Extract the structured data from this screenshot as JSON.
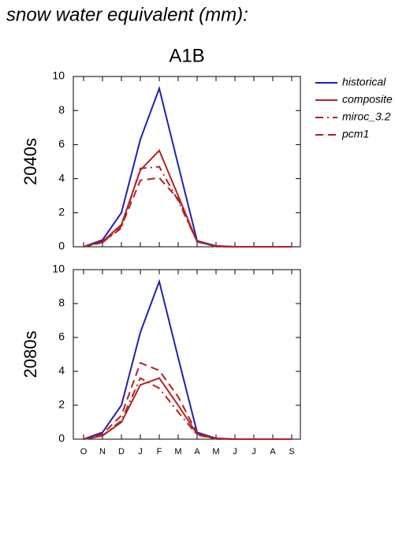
{
  "title": "snow water equivalent (mm):",
  "subtitle": "A1B",
  "legend": [
    {
      "name": "historical",
      "color": "#1f1fb4",
      "dash": "solid"
    },
    {
      "name": "composite",
      "color": "#b22222",
      "dash": "solid"
    },
    {
      "name": "miroc_3.2",
      "color": "#b22222",
      "dash": "dashdot"
    },
    {
      "name": "pcm1",
      "color": "#b22222",
      "dash": "dashed"
    }
  ],
  "chart_data": [
    {
      "type": "line",
      "ylabel": "2040s",
      "ylim": [
        0,
        10
      ],
      "yticks": [
        0,
        2,
        4,
        6,
        8,
        10
      ],
      "series": [
        {
          "values": [
            0,
            0.4,
            2.0,
            6.3,
            9.3,
            4.8,
            0.35,
            0.05,
            0,
            0,
            0,
            0
          ]
        },
        {
          "values": [
            0,
            0.3,
            1.3,
            4.5,
            5.65,
            3.0,
            0.3,
            0.02,
            0,
            0,
            0,
            0
          ]
        },
        {
          "values": [
            0,
            0.25,
            1.1,
            4.6,
            4.7,
            2.7,
            0.3,
            0.02,
            0,
            0,
            0,
            0
          ]
        },
        {
          "values": [
            0,
            0.25,
            1.2,
            3.9,
            4.05,
            2.8,
            0.3,
            0.02,
            0,
            0,
            0,
            0
          ]
        }
      ]
    },
    {
      "type": "line",
      "ylabel": "2080s",
      "ylim": [
        0,
        10
      ],
      "yticks": [
        0,
        2,
        4,
        6,
        8,
        10
      ],
      "categories": [
        "O",
        "N",
        "D",
        "J",
        "F",
        "M",
        "A",
        "M",
        "J",
        "J",
        "A",
        "S"
      ],
      "series": [
        {
          "values": [
            0,
            0.4,
            2.0,
            6.3,
            9.3,
            4.8,
            0.4,
            0.05,
            0,
            0,
            0,
            0
          ]
        },
        {
          "values": [
            0,
            0.2,
            1.0,
            3.2,
            3.6,
            2.0,
            0.3,
            0.02,
            0,
            0,
            0,
            0
          ]
        },
        {
          "values": [
            0,
            0.2,
            1.1,
            3.6,
            3.0,
            1.6,
            0.25,
            0.02,
            0,
            0,
            0,
            0
          ]
        },
        {
          "values": [
            0,
            0.3,
            1.4,
            4.5,
            4.05,
            2.5,
            0.35,
            0.02,
            0,
            0,
            0,
            0
          ]
        }
      ]
    }
  ]
}
